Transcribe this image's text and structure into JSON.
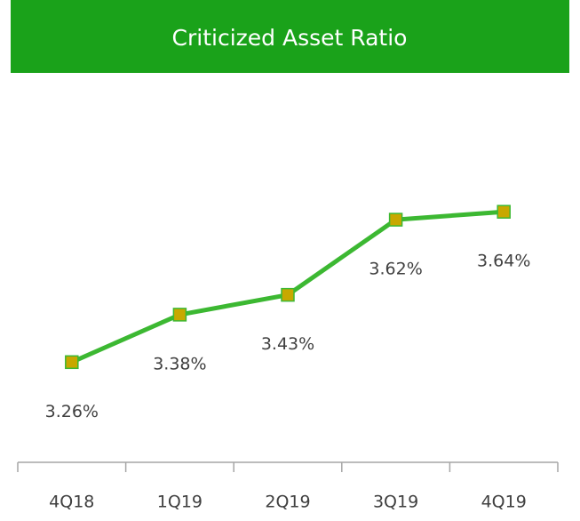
{
  "chart_data": {
    "type": "line",
    "title": "Criticized Asset Ratio",
    "categories": [
      "4Q18",
      "1Q19",
      "2Q19",
      "3Q19",
      "4Q19"
    ],
    "values": [
      3.26,
      3.38,
      3.43,
      3.62,
      3.64
    ],
    "value_labels": [
      "3.26%",
      "3.38%",
      "3.43%",
      "3.62%",
      "3.64%"
    ],
    "color": "#3cb832",
    "marker_color": "#c8a800",
    "ylim": [
      3.0,
      3.8
    ],
    "grid": false
  }
}
